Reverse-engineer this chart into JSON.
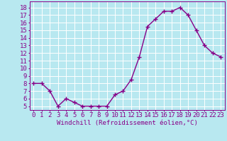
{
  "x": [
    0,
    1,
    2,
    3,
    4,
    5,
    6,
    7,
    8,
    9,
    10,
    11,
    12,
    13,
    14,
    15,
    16,
    17,
    18,
    19,
    20,
    21,
    22,
    23
  ],
  "y": [
    8,
    8,
    7,
    5,
    6,
    5.5,
    5,
    5,
    5,
    5,
    6.5,
    7,
    8.5,
    11.5,
    15.5,
    16.5,
    17.5,
    17.5,
    18,
    17,
    15,
    13,
    12,
    11.5
  ],
  "line_color": "#880088",
  "marker": "+",
  "bg_color": "#b8e8f0",
  "grid_color": "#ffffff",
  "xlabel": "Windchill (Refroidissement éolien,°C)",
  "ylabel_ticks": [
    5,
    6,
    7,
    8,
    9,
    10,
    11,
    12,
    13,
    14,
    15,
    16,
    17,
    18
  ],
  "ylim": [
    4.5,
    18.8
  ],
  "xlim": [
    -0.5,
    23.5
  ],
  "xlabel_fontsize": 6.5,
  "tick_fontsize": 6.5,
  "line_width": 1.0,
  "marker_size": 4
}
